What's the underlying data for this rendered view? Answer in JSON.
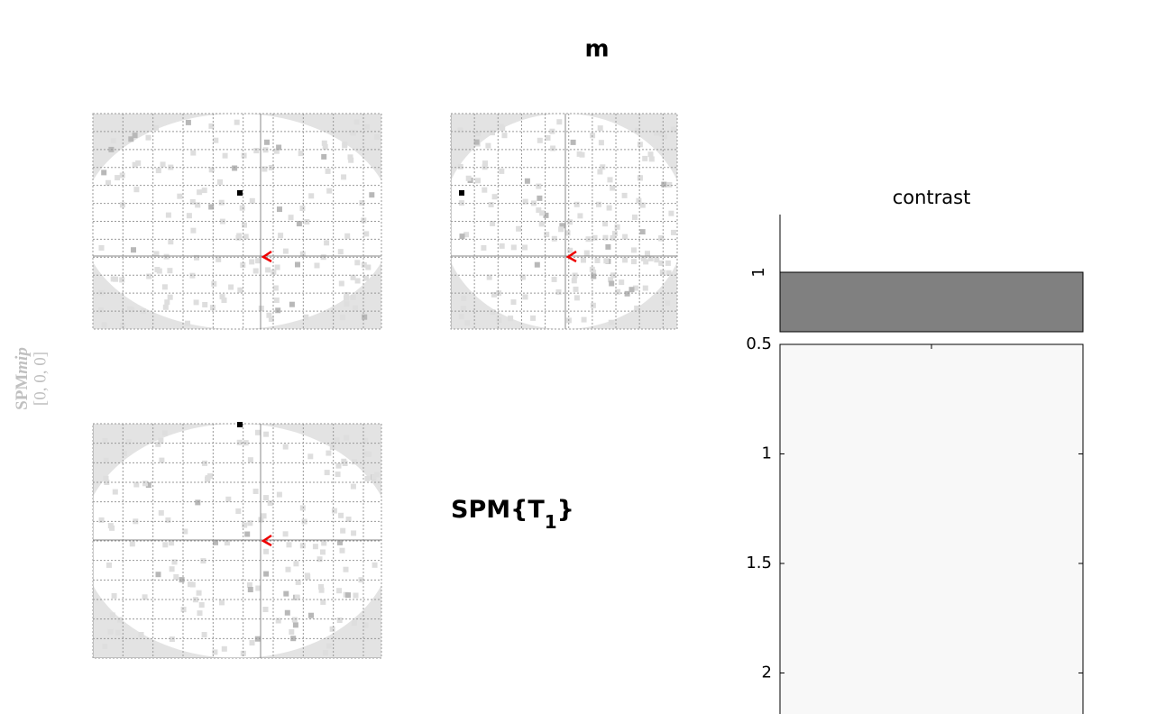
{
  "title": "m",
  "mip_label": {
    "name": "SPM",
    "italic": "mip",
    "coords": "[0, 0, 0]"
  },
  "statistic": {
    "base": "SPM{T",
    "subscript": "1",
    "close": "}"
  },
  "contrast": {
    "title": "contrast",
    "values": [
      1
    ],
    "yticks": [
      1
    ]
  },
  "design_matrix": {
    "yticks": [
      0.5,
      1,
      1.5,
      2
    ]
  }
}
